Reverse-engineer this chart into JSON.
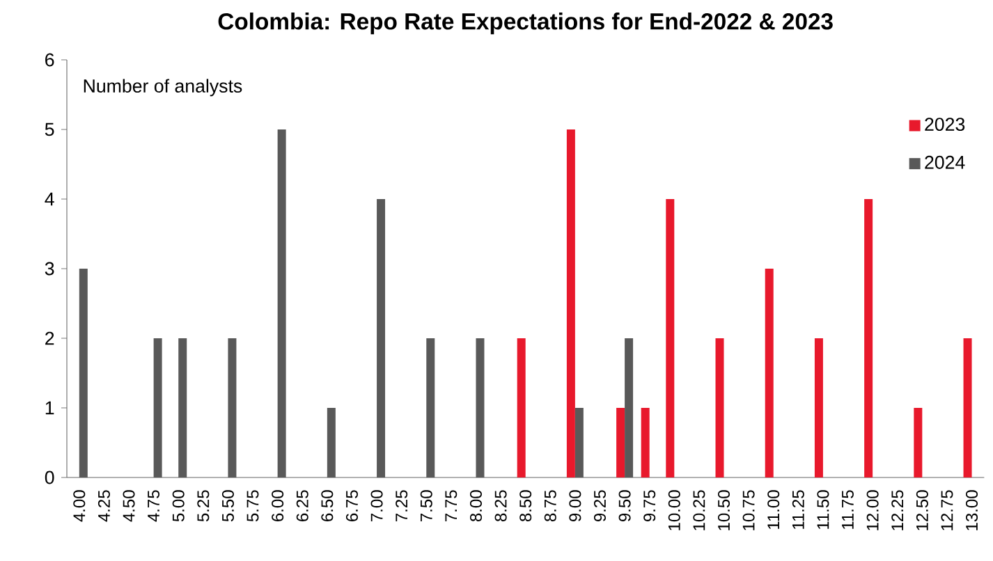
{
  "chart_data": {
    "type": "bar",
    "title": "Colombia: Repo Rate Expectations for End-2022 & 2023",
    "ylabel": "Number of analysts",
    "categories": [
      "4.00",
      "4.25",
      "4.50",
      "4.75",
      "5.00",
      "5.25",
      "5.50",
      "5.75",
      "6.00",
      "6.25",
      "6.50",
      "6.75",
      "7.00",
      "7.25",
      "7.50",
      "7.75",
      "8.00",
      "8.25",
      "8.50",
      "8.75",
      "9.00",
      "9.25",
      "9.50",
      "9.75",
      "10.00",
      "10.25",
      "10.50",
      "10.75",
      "11.00",
      "11.25",
      "11.50",
      "11.75",
      "12.00",
      "12.25",
      "12.50",
      "12.75",
      "13.00"
    ],
    "series": [
      {
        "name": "2023",
        "color": "#e8192c",
        "values": [
          0,
          0,
          0,
          0,
          0,
          0,
          0,
          0,
          0,
          0,
          0,
          0,
          0,
          0,
          0,
          0,
          0,
          0,
          2,
          0,
          5,
          0,
          1,
          1,
          4,
          0,
          2,
          0,
          3,
          0,
          2,
          0,
          4,
          0,
          1,
          0,
          2
        ]
      },
      {
        "name": "2024",
        "color": "#595959",
        "values": [
          3,
          0,
          0,
          2,
          2,
          0,
          2,
          0,
          5,
          0,
          1,
          0,
          4,
          0,
          2,
          0,
          2,
          0,
          0,
          0,
          1,
          0,
          2,
          0,
          0,
          0,
          0,
          0,
          0,
          0,
          0,
          0,
          0,
          0,
          0,
          0,
          0
        ]
      }
    ],
    "ylim": [
      0,
      6
    ],
    "yticks": [
      0,
      1,
      2,
      3,
      4,
      5,
      6
    ],
    "legend": "top right",
    "grid": false
  }
}
